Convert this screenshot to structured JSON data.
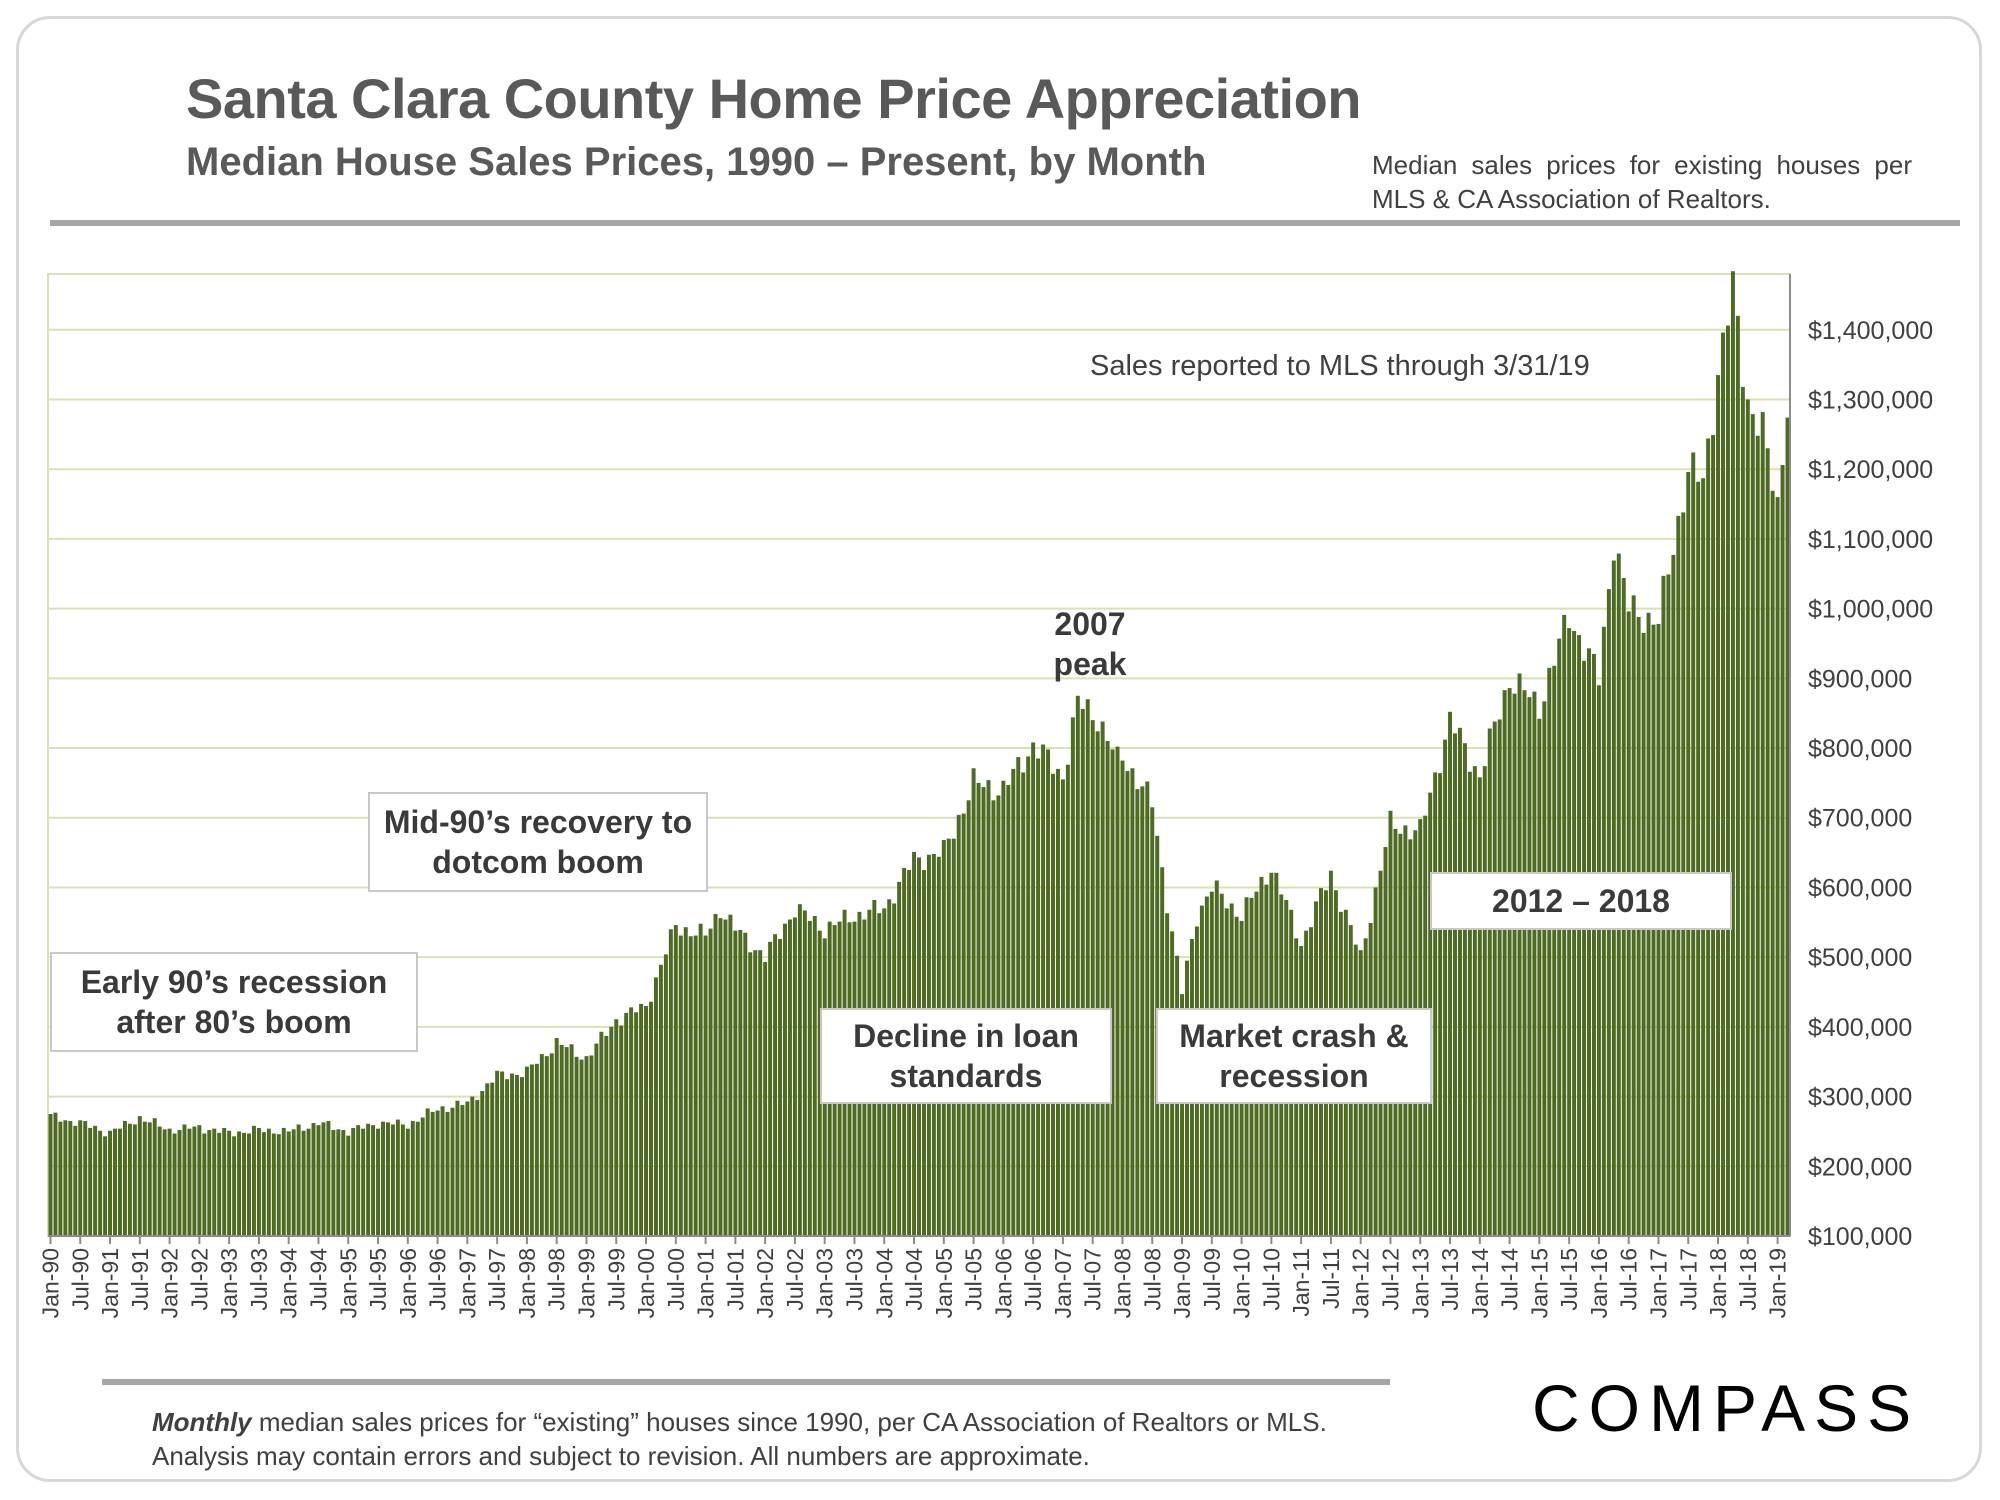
{
  "header": {
    "title": "Santa Clara County Home Price Appreciation",
    "subtitle": "Median House Sales Prices, 1990 – Present, by Month",
    "source_note": "Median sales prices for existing houses per MLS & CA Association of Realtors."
  },
  "footer": {
    "footnote_italic": "Monthly",
    "footnote_text": " median sales prices for “existing” houses since 1990, per CA Association of Realtors or MLS.  Analysis may contain errors and subject to revision. All numbers are approximate.",
    "logo": "COMPASS"
  },
  "annotations": {
    "mls_note": "Sales reported to MLS through 3/31/19",
    "early90s": "Early 90’s recession after 80’s boom",
    "mid90s": "Mid-90’s recovery to dotcom boom",
    "peak_line1": "2007",
    "peak_line2": "peak",
    "decline": "Decline in loan standards",
    "crash": "Market crash & recession",
    "range2012": "2012 – 2018"
  },
  "colors": {
    "bar": "#4e6b22",
    "bar_edge": "#3b5318",
    "grid": "#d9e2b0"
  },
  "chart_data": {
    "type": "bar",
    "title": "Santa Clara County Home Price Appreciation",
    "xlabel": "",
    "ylabel": "",
    "ylim": [
      100000,
      1480000
    ],
    "y_ticks": [
      100000,
      200000,
      300000,
      400000,
      500000,
      600000,
      700000,
      800000,
      900000,
      1000000,
      1100000,
      1200000,
      1300000,
      1400000
    ],
    "y_tick_labels": [
      "$100,000",
      "$200,000",
      "$300,000",
      "$400,000",
      "$500,000",
      "$600,000",
      "$700,000",
      "$800,000",
      "$900,000",
      "$1,000,000",
      "$1,100,000",
      "$1,200,000",
      "$1,300,000",
      "$1,400,000"
    ],
    "x_tick_labels": [
      "Jan-90",
      "Jul-90",
      "Jan-91",
      "Jul-91",
      "Jan-92",
      "Jul-92",
      "Jan-93",
      "Jul-93",
      "Jan-94",
      "Jul-94",
      "Jan-95",
      "Jul-95",
      "Jan-96",
      "Jul-96",
      "Jan-97",
      "Jul-97",
      "Jan-98",
      "Jul-98",
      "Jan-99",
      "Jul-99",
      "Jan-00",
      "Jul-00",
      "Jan-01",
      "Jul-01",
      "Jan-02",
      "Jul-02",
      "Jan-03",
      "Jul-03",
      "Jan-04",
      "Jul-04",
      "Jan-05",
      "Jul-05",
      "Jan-06",
      "Jul-06",
      "Jan-07",
      "Jul-07",
      "Jan-08",
      "Jul-08",
      "Jan-09",
      "Jul-09",
      "Jan-10",
      "Jul-10",
      "Jan-11",
      "Jul-11",
      "Jan-12",
      "Jul-12",
      "Jan-13",
      "Jul-13",
      "Jan-14",
      "Jul-14",
      "Jan-15",
      "Jul-15",
      "Jan-16",
      "Jul-16",
      "Jan-17",
      "Jul-17",
      "Jan-18",
      "Jul-18",
      "Jan-19"
    ],
    "grid": true,
    "start_month": "Jan-90",
    "end_month": "Mar-19",
    "anchors": [
      [
        "Jan-90",
        272000
      ],
      [
        "Jul-90",
        262000
      ],
      [
        "Jan-91",
        248000
      ],
      [
        "Jul-91",
        270000
      ],
      [
        "Jan-92",
        252000
      ],
      [
        "Jul-92",
        256000
      ],
      [
        "Jan-93",
        248000
      ],
      [
        "Jul-93",
        252000
      ],
      [
        "Jan-94",
        250000
      ],
      [
        "Jul-94",
        262000
      ],
      [
        "Jan-95",
        250000
      ],
      [
        "Jul-95",
        262000
      ],
      [
        "Jan-96",
        260000
      ],
      [
        "Jul-96",
        282000
      ],
      [
        "Jan-97",
        290000
      ],
      [
        "Jul-97",
        330000
      ],
      [
        "Jan-98",
        335000
      ],
      [
        "Jul-98",
        378000
      ],
      [
        "Jan-99",
        355000
      ],
      [
        "Jul-99",
        410000
      ],
      [
        "Jan-00",
        430000
      ],
      [
        "Jul-00",
        545000
      ],
      [
        "Jan-01",
        530000
      ],
      [
        "Apr-01",
        570000
      ],
      [
        "Jul-01",
        540000
      ],
      [
        "Jan-02",
        500000
      ],
      [
        "Jul-02",
        570000
      ],
      [
        "Jan-03",
        540000
      ],
      [
        "Jul-03",
        560000
      ],
      [
        "Jan-04",
        570000
      ],
      [
        "Jul-04",
        640000
      ],
      [
        "Jan-05",
        650000
      ],
      [
        "Jul-05",
        750000
      ],
      [
        "Jan-06",
        740000
      ],
      [
        "Jul-06",
        805000
      ],
      [
        "Jan-07",
        760000
      ],
      [
        "Apr-07",
        865000
      ],
      [
        "Aug-07",
        845000
      ],
      [
        "Dec-07",
        780000
      ],
      [
        "Jan-08",
        790000
      ],
      [
        "Jul-08",
        720000
      ],
      [
        "Oct-08",
        580000
      ],
      [
        "Jan-09",
        450000
      ],
      [
        "Apr-09",
        560000
      ],
      [
        "Jul-09",
        600000
      ],
      [
        "Jan-10",
        560000
      ],
      [
        "Jul-10",
        630000
      ],
      [
        "Jan-11",
        520000
      ],
      [
        "Jul-11",
        620000
      ],
      [
        "Jan-12",
        500000
      ],
      [
        "Jul-12",
        690000
      ],
      [
        "Jan-13",
        680000
      ],
      [
        "Jul-13",
        840000
      ],
      [
        "Jan-14",
        760000
      ],
      [
        "Jul-14",
        900000
      ],
      [
        "Jan-15",
        860000
      ],
      [
        "Jul-15",
        990000
      ],
      [
        "Jan-16",
        900000
      ],
      [
        "Apr-16",
        1100000
      ],
      [
        "Jul-16",
        1000000
      ],
      [
        "Jan-17",
        980000
      ],
      [
        "Jul-17",
        1200000
      ],
      [
        "Oct-17",
        1180000
      ],
      [
        "Jan-18",
        1340000
      ],
      [
        "Apr-18",
        1455000
      ],
      [
        "Jul-18",
        1300000
      ],
      [
        "Oct-18",
        1250000
      ],
      [
        "Jan-19",
        1150000
      ],
      [
        "Mar-19",
        1300000
      ]
    ]
  }
}
